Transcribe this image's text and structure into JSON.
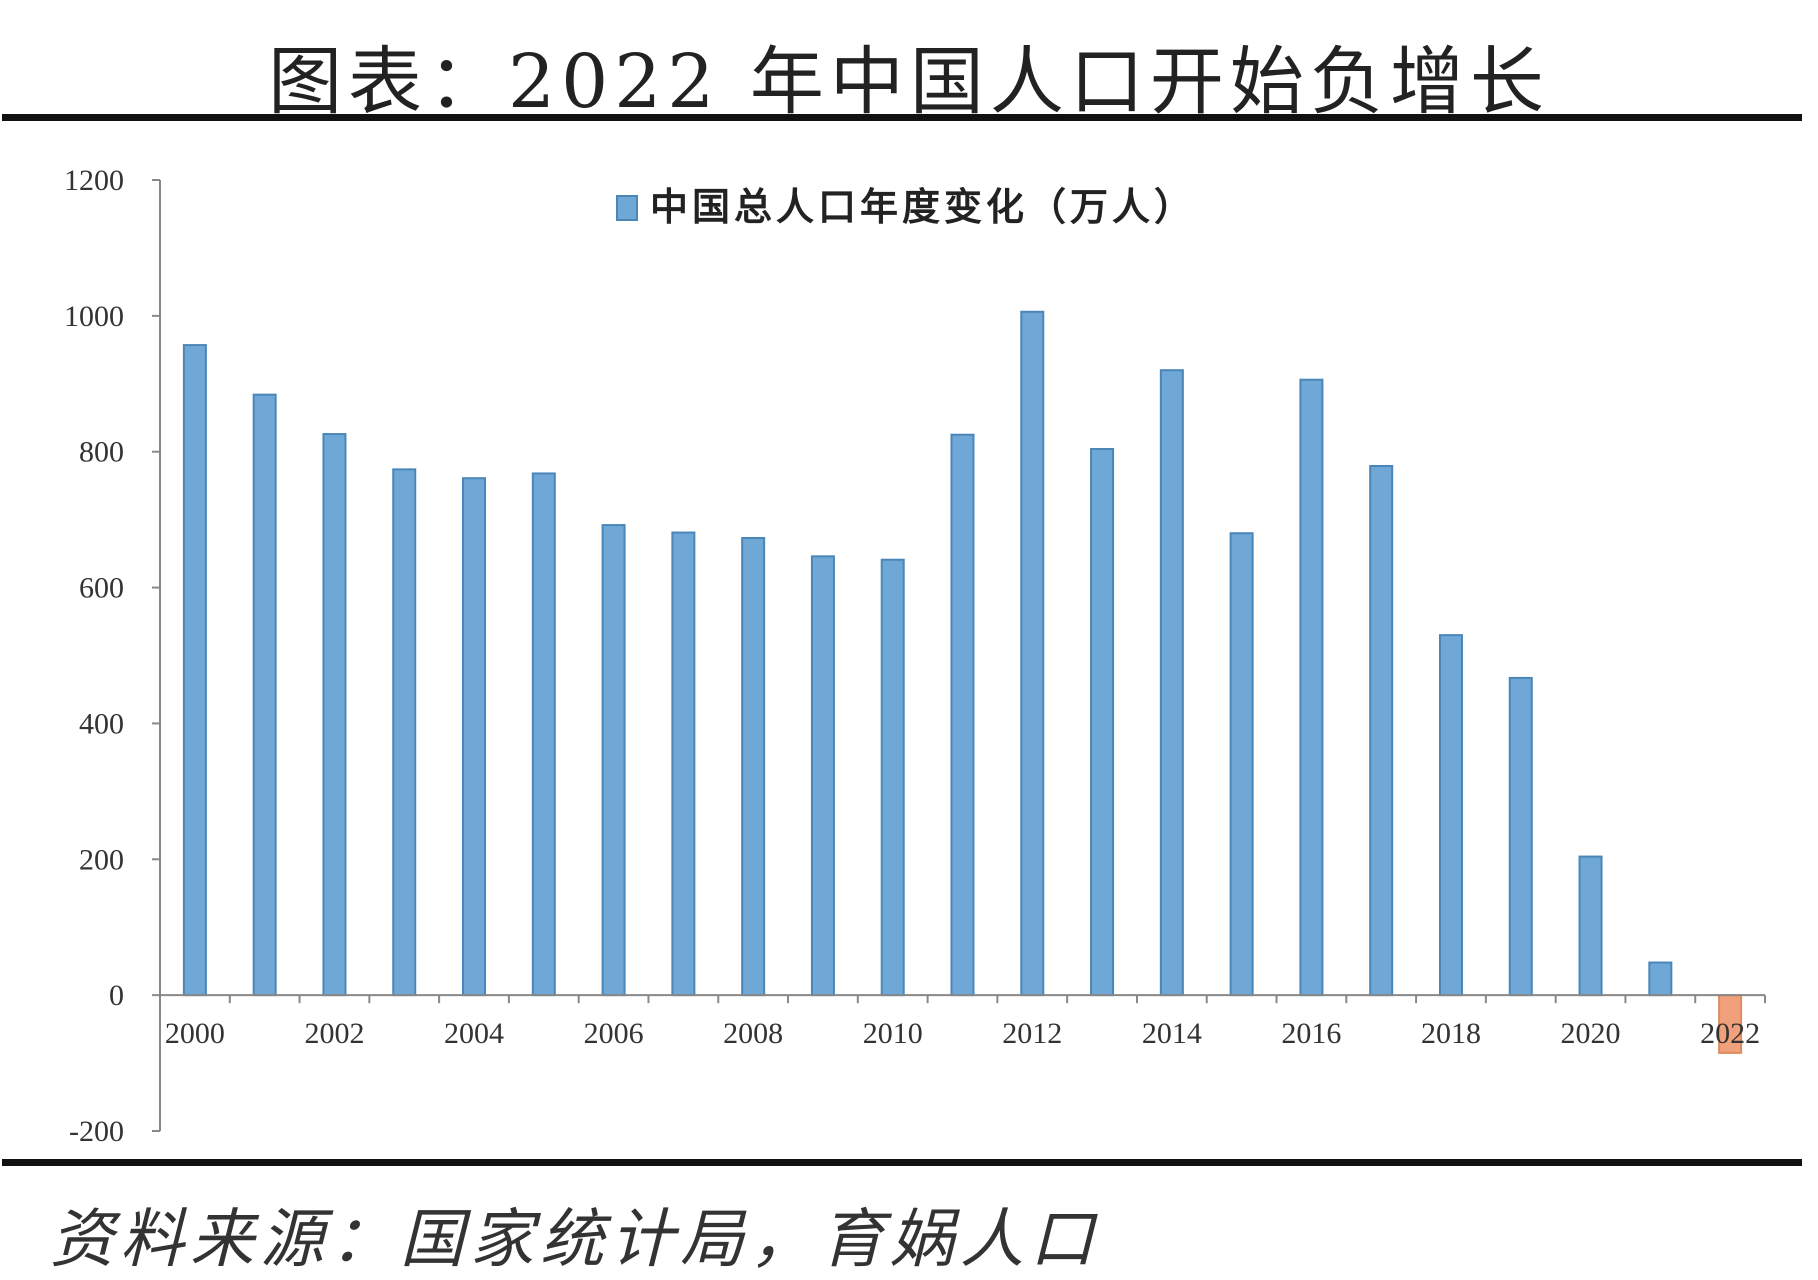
{
  "title": "图表：2022 年中国人口开始负增长",
  "source": "资料来源：国家统计局，育娲人口",
  "colors": {
    "positive": "#6fa8d6",
    "positive_edge": "#4a86b8",
    "negative": "#f0a07a",
    "axis": "#888888"
  },
  "chart_data": {
    "type": "bar",
    "title": "",
    "xlabel": "",
    "ylabel": "",
    "legend": {
      "label": "中国总人口年度变化（万人）",
      "placement": "top-center"
    },
    "ylim": [
      -200,
      1200
    ],
    "yticks": [
      -200,
      0,
      200,
      400,
      600,
      800,
      1000,
      1200
    ],
    "grid": false,
    "categories": [
      "2000",
      "2001",
      "2002",
      "2003",
      "2004",
      "2005",
      "2006",
      "2007",
      "2008",
      "2009",
      "2010",
      "2011",
      "2012",
      "2013",
      "2014",
      "2015",
      "2016",
      "2017",
      "2018",
      "2019",
      "2020",
      "2021",
      "2022"
    ],
    "xtick_labels": [
      "2000",
      "2002",
      "2004",
      "2006",
      "2008",
      "2010",
      "2012",
      "2014",
      "2016",
      "2018",
      "2020",
      "2022"
    ],
    "series": [
      {
        "name": "中国总人口年度变化（万人）",
        "values": [
          957,
          884,
          826,
          774,
          761,
          768,
          692,
          681,
          673,
          646,
          641,
          825,
          1006,
          804,
          920,
          680,
          906,
          779,
          530,
          467,
          204,
          48,
          -85
        ]
      }
    ]
  }
}
